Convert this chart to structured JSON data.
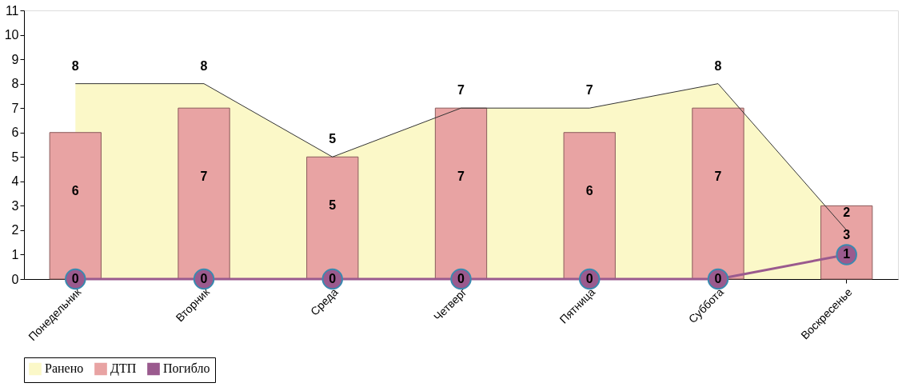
{
  "chart_data": {
    "type": "bar",
    "categories": [
      "Понедельник",
      "Вторник",
      "Среда",
      "Четверг",
      "Пятница",
      "Суббота",
      "Воскресенье"
    ],
    "series": [
      {
        "name": "Ранено",
        "type": "area",
        "color": "#fbf8c8",
        "values": [
          8,
          8,
          5,
          7,
          7,
          8,
          2
        ]
      },
      {
        "name": "ДТП",
        "color": "#e8a3a3",
        "values": [
          6,
          7,
          5,
          7,
          6,
          7,
          3
        ]
      },
      {
        "name": "Погибло",
        "type": "line",
        "color": "#9a5a8e",
        "marker": "circle",
        "values": [
          0,
          0,
          0,
          0,
          0,
          0,
          1
        ]
      }
    ],
    "ylim": [
      0,
      11
    ],
    "yticks": [
      0,
      1,
      2,
      3,
      4,
      5,
      6,
      7,
      8,
      9,
      10,
      11
    ],
    "grid": false,
    "legend": "bottom",
    "data_labels": true
  }
}
